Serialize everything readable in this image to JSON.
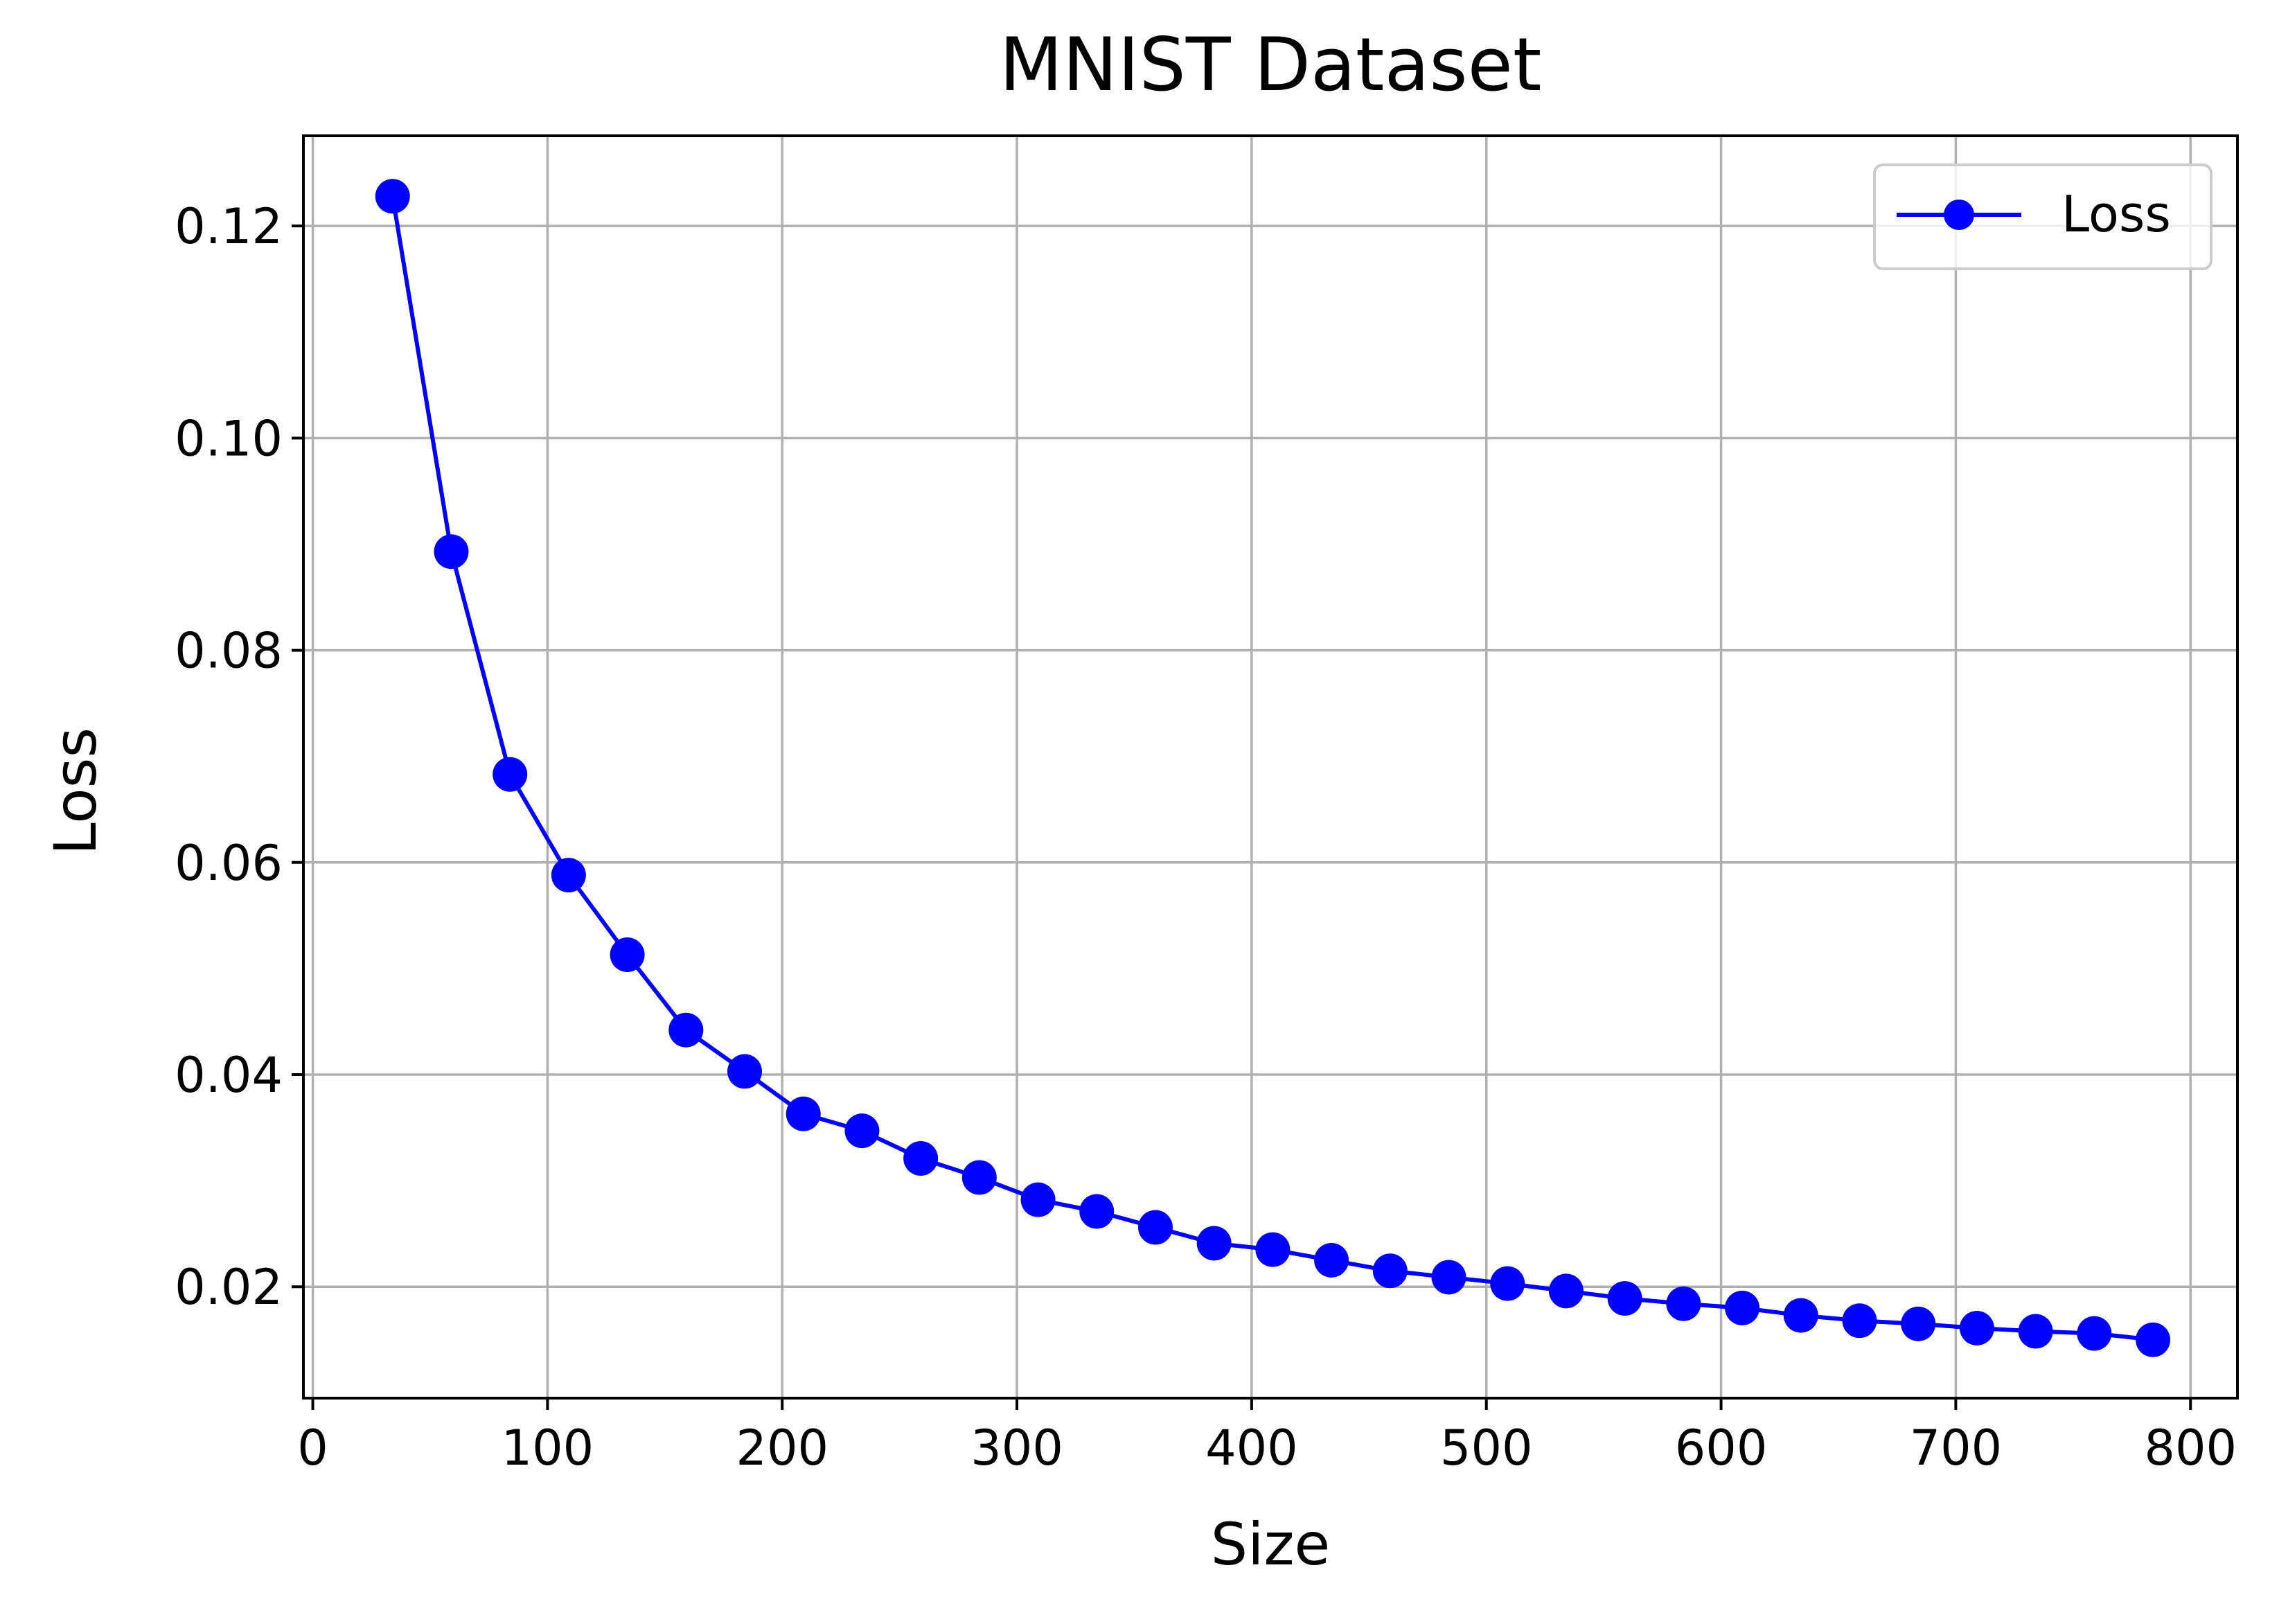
{
  "chart_data": {
    "type": "line",
    "title": "MNIST Dataset",
    "xlabel": "Size",
    "ylabel": "Loss",
    "xlim": [
      -4,
      820
    ],
    "ylim": [
      0.0095,
      0.1285
    ],
    "xticks": [
      0,
      100,
      200,
      300,
      400,
      500,
      600,
      700,
      800
    ],
    "xtick_labels": [
      "0",
      "100",
      "200",
      "300",
      "400",
      "500",
      "600",
      "700",
      "800"
    ],
    "yticks": [
      0.02,
      0.04,
      0.06,
      0.08,
      0.1,
      0.12
    ],
    "ytick_labels": [
      "0.02",
      "0.04",
      "0.06",
      "0.08",
      "0.10",
      "0.12"
    ],
    "grid": true,
    "legend_position": "top-right",
    "series": [
      {
        "name": "Loss",
        "color": "#0000ff",
        "marker": "circle",
        "x": [
          34,
          59,
          84,
          109,
          134,
          159,
          184,
          209,
          234,
          259,
          284,
          309,
          334,
          359,
          384,
          409,
          434,
          459,
          484,
          509,
          534,
          559,
          584,
          609,
          634,
          659,
          684,
          709,
          734,
          759,
          784
        ],
        "y": [
          0.1228,
          0.0893,
          0.0683,
          0.0588,
          0.0513,
          0.0442,
          0.0403,
          0.0363,
          0.0347,
          0.0321,
          0.0303,
          0.0282,
          0.0271,
          0.0256,
          0.0241,
          0.0235,
          0.0225,
          0.0215,
          0.0209,
          0.0203,
          0.0196,
          0.0189,
          0.0184,
          0.018,
          0.0173,
          0.0168,
          0.0165,
          0.0161,
          0.0158,
          0.0156,
          0.015
        ]
      }
    ]
  }
}
